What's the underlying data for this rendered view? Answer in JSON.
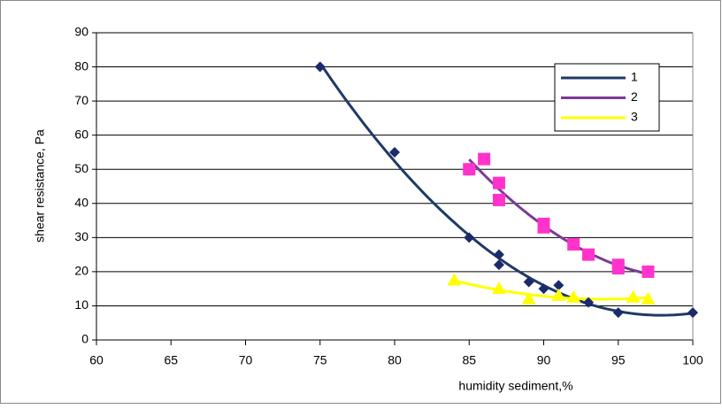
{
  "chart_data": {
    "type": "scatter",
    "x_label": "humidity sediment,%",
    "y_label": "shear resistance, Pa",
    "series": [
      {
        "name": "1",
        "color": "#1b2a6b",
        "line_color": "#1f3a66",
        "marker": "diamond",
        "x": [
          75,
          80,
          85,
          87,
          87,
          89,
          90,
          91,
          93,
          95,
          100
        ],
        "values": [
          80,
          55,
          30,
          25,
          22,
          17,
          15,
          16,
          11,
          8,
          8
        ]
      },
      {
        "name": "2",
        "color": "#ff33cc",
        "line_color": "#7a3a9a",
        "marker": "square",
        "x": [
          85,
          86,
          87,
          87,
          90,
          90,
          92,
          93,
          95,
          95,
          97
        ],
        "values": [
          50,
          53,
          46,
          41,
          34,
          33,
          28,
          25,
          22,
          21,
          20
        ]
      },
      {
        "name": "3",
        "color": "#ffff00",
        "line_color": "#ffff00",
        "marker": "triangle",
        "x": [
          84,
          87,
          89,
          91,
          92,
          96,
          97
        ],
        "values": [
          17.5,
          15,
          12,
          13,
          12.5,
          12.5,
          12
        ]
      }
    ],
    "trendline": "polynomial",
    "xlim": [
      60,
      100
    ],
    "xticks": [
      60,
      65,
      70,
      75,
      80,
      85,
      90,
      95,
      100
    ],
    "ylim": [
      0,
      90
    ],
    "yticks": [
      0,
      10,
      20,
      30,
      40,
      50,
      60,
      70,
      80,
      90
    ],
    "grid": true,
    "legend": "upper-right"
  }
}
